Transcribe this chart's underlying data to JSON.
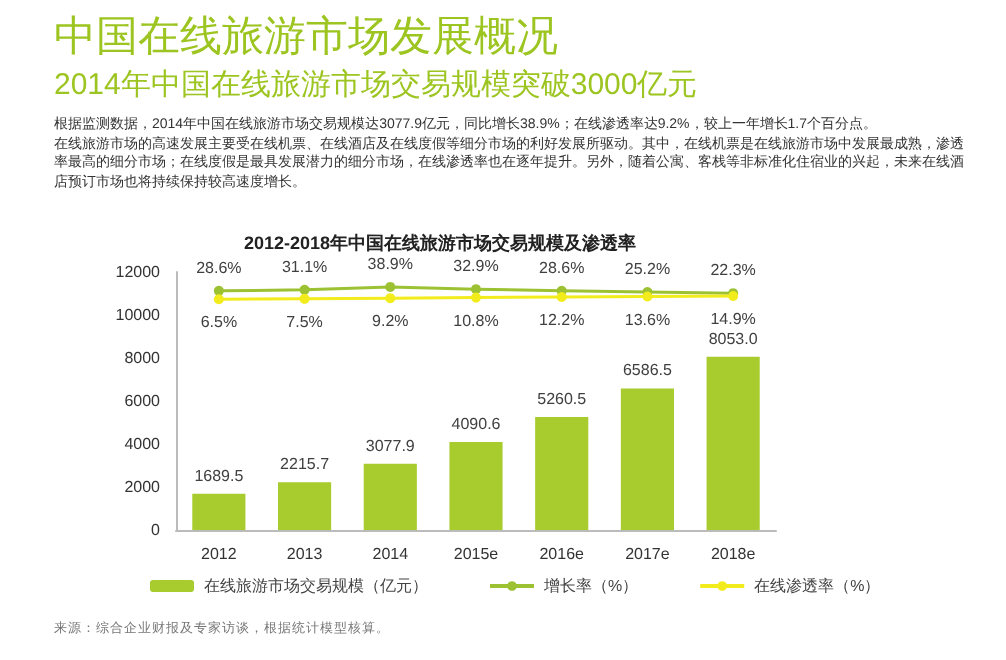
{
  "chart_data": {
    "type": "bar",
    "title": "中国在线旅游市场发展概况",
    "subtitle": "2014年中国在线旅游市场交易规模突破3000亿元",
    "annotations": [
      "根据监测数据，2014年中国在线旅游市场交易规模达3077.9亿元，同比增长38.9%；在线渗透率达9.2%，较上一年增长1.7个百分点。",
      "在线旅游市场的高速发展主要受在线机票、在线酒店及在线度假等细分市场的利好发展所驱动。其中，在线机票是在线旅游市场中发展最成熟，渗透率最高的细分市场；在线度假是最具发展潜力的细分市场，在线渗透率也在逐年提升。另外，随着公寓、客栈等非标准化住宿业的兴起，未来在线酒店预订市场也将持续保持较高速度增长。",
      "2012-2018年中国在线旅游市场交易规模及渗透率",
      "来源：综合企业财报及专家访谈，根据统计模型核算。"
    ],
    "categories": [
      "2012",
      "2013",
      "2014",
      "2015e",
      "2016e",
      "2017e",
      "2018e"
    ],
    "series": [
      {
        "name": "在线旅游市场交易规模（亿元）",
        "color": "#a8cb2e",
        "values": [
          1689.5,
          2215.7,
          3077.9,
          4090.6,
          5260.5,
          6586.5,
          8053.0
        ],
        "value_labels": [
          "1689.5",
          "2215.7",
          "3077.9",
          "4090.6",
          "5260.5",
          "6586.5",
          "8053.0"
        ]
      },
      {
        "name": "增长率（%）",
        "type": "line",
        "axis": "y2",
        "color": "#9cc233",
        "values": [
          28.6,
          31.1,
          38.9,
          32.9,
          28.6,
          25.2,
          22.3
        ],
        "value_labels": [
          "28.6%",
          "31.1%",
          "38.9%",
          "32.9%",
          "28.6%",
          "25.2%",
          "22.3%"
        ]
      },
      {
        "name": "在线渗透率（%）",
        "type": "line",
        "axis": "y2",
        "color": "#f2ec1c",
        "values": [
          6.5,
          7.5,
          9.2,
          10.8,
          12.2,
          13.6,
          14.9
        ],
        "value_labels": [
          "6.5%",
          "7.5%",
          "9.2%",
          "10.8%",
          "12.2%",
          "13.6%",
          "14.9%"
        ]
      }
    ],
    "ylim": [
      0,
      12000
    ],
    "yticks": [
      0,
      2000,
      4000,
      6000,
      8000,
      10000,
      12000
    ],
    "y2lim": [
      -600,
      78
    ],
    "grid": false,
    "legend": "bottom",
    "marker": "circle",
    "line_style": "solid",
    "tick_labels": "xy"
  }
}
